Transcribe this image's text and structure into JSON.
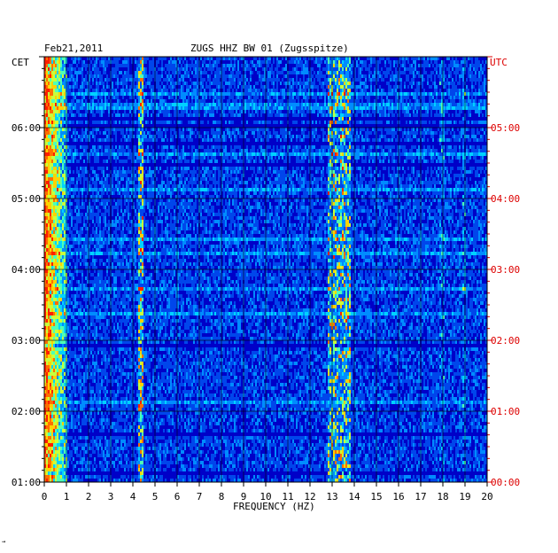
{
  "header": {
    "date": "Feb21,2011",
    "station": "ZUGS HHZ BW 01 (Zugsspitze)",
    "left_tz": "CET",
    "right_tz": "UTC"
  },
  "footer_mark": "→",
  "chart_data": {
    "type": "heatmap",
    "title": "ZUGS HHZ BW 01 (Zugsspitze)",
    "subtitle": "Feb21,2011",
    "xlabel": "FREQUENCY (HZ)",
    "xlim": [
      0,
      20
    ],
    "x_ticks": [
      "0",
      "1",
      "2",
      "3",
      "4",
      "5",
      "6",
      "7",
      "8",
      "9",
      "10",
      "11",
      "12",
      "13",
      "14",
      "15",
      "16",
      "17",
      "18",
      "19",
      "20"
    ],
    "y_left_label": "CET",
    "y_left_ticks": [
      "01:00",
      "02:00",
      "03:00",
      "04:00",
      "05:00",
      "06:00"
    ],
    "y_right_label": "UTC",
    "y_right_ticks": [
      "00:00",
      "01:00",
      "02:00",
      "03:00",
      "04:00",
      "05:00"
    ],
    "time_range_cet": [
      "01:00",
      "07:00"
    ],
    "grid": true,
    "colors": {
      "background": "#0000cc",
      "low": "#0018d8",
      "mid": "#00a0ff",
      "high": "#ffd000",
      "peak": "#ff2000",
      "axis_red": "#dd0000"
    },
    "energy_bands": [
      {
        "from_hz": 0,
        "to_hz": 1,
        "level": "high"
      },
      {
        "from_hz": 4.2,
        "to_hz": 4.4,
        "level": "spike"
      },
      {
        "from_hz": 12.8,
        "to_hz": 13.8,
        "level": "medium"
      },
      {
        "from_hz": 17.8,
        "to_hz": 18.0,
        "level": "low"
      },
      {
        "from_hz": 18.8,
        "to_hz": 19.0,
        "level": "low"
      }
    ]
  }
}
